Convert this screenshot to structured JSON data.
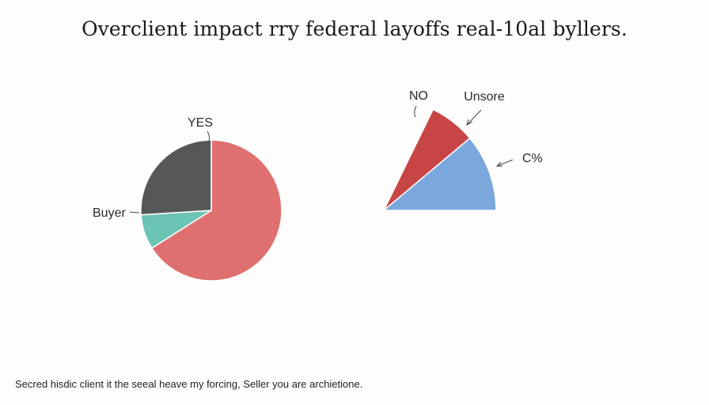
{
  "title": "Overclient impact rry federal layoffs real-10al byllers.",
  "footnote": "Secred hisdic client it the seeal heave my forcing, Seller you are archietione.",
  "chart_data": [
    {
      "type": "pie",
      "title": "",
      "labels_shown": [
        "YES",
        "Buyer"
      ],
      "slices": [
        {
          "label": "YES",
          "value": 66,
          "color": "#e07070"
        },
        {
          "label": "Buyer",
          "value": 8,
          "color": "#6cc4b4"
        },
        {
          "label": "",
          "value": 26,
          "color": "#555759"
        }
      ],
      "grid": false,
      "legend": "none"
    },
    {
      "type": "pie",
      "title": "",
      "partial": true,
      "labels_shown": [
        "NO",
        "Unsore",
        "C%"
      ],
      "slices": [
        {
          "label": "NO",
          "value": 9,
          "color": "#c84545"
        },
        {
          "label": "Unsore",
          "value": 0,
          "color": "#c84545"
        },
        {
          "label": "C%",
          "value": 15,
          "color": "#7aa8dc"
        }
      ],
      "grid": false,
      "legend": "none"
    }
  ]
}
